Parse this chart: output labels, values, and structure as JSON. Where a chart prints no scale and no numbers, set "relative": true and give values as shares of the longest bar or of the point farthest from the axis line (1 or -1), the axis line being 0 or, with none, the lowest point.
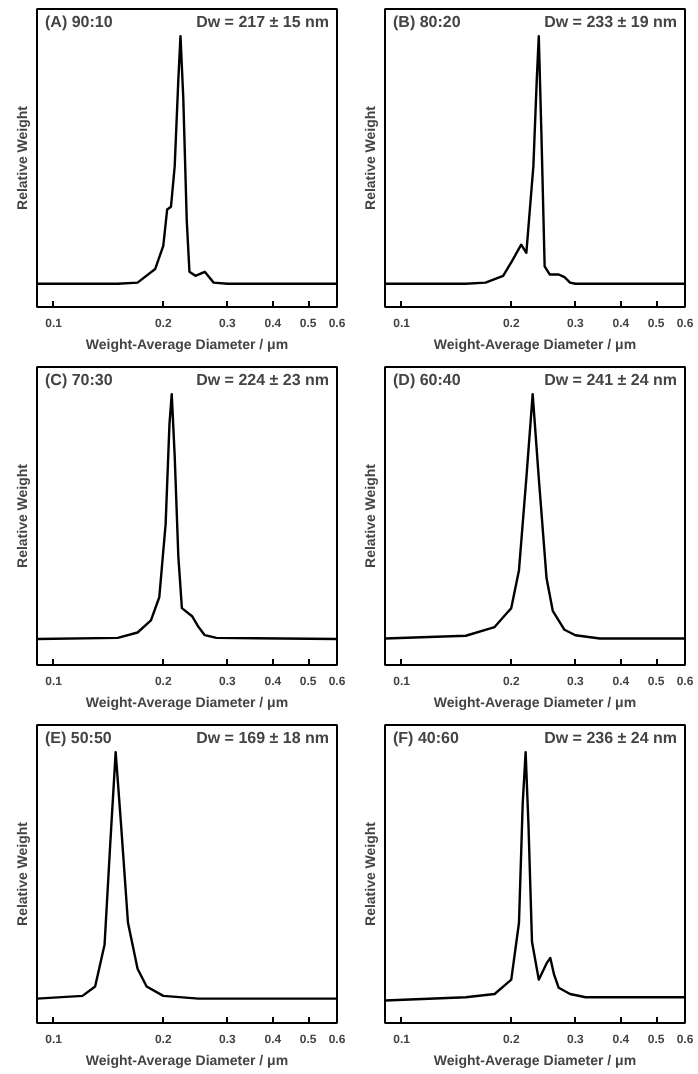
{
  "chart_data": [
    {
      "type": "line",
      "title": "(A) 90:10",
      "annotations": [
        "Dw = 217 ± 15 nm"
      ],
      "xlabel": "Weight-Average Diameter / μm",
      "ylabel": "Relative Weight",
      "log": "x",
      "relative": true,
      "tick_labels": "x",
      "xlim": [
        0.09,
        0.6
      ],
      "xticks": [
        0.1,
        0.2,
        0.3,
        0.4,
        0.5,
        0.6
      ],
      "color": "#000000",
      "x": [
        0.09,
        0.15,
        0.17,
        0.19,
        0.2,
        0.205,
        0.21,
        0.215,
        0.22,
        0.223,
        0.227,
        0.232,
        0.236,
        0.245,
        0.26,
        0.275,
        0.3,
        0.6
      ],
      "values": [
        0.086,
        0.086,
        0.09,
        0.14,
        0.226,
        0.36,
        0.37,
        0.52,
        0.84,
        1.0,
        0.77,
        0.32,
        0.13,
        0.115,
        0.13,
        0.09,
        0.086,
        0.086
      ]
    },
    {
      "type": "line",
      "title": "(B) 80:20",
      "annotations": [
        "Dw = 233 ± 19 nm"
      ],
      "xlabel": "Weight-Average Diameter / μm",
      "ylabel": "Relative Weight",
      "log": "x",
      "relative": true,
      "tick_labels": "x",
      "xlim": [
        0.09,
        0.6
      ],
      "xticks": [
        0.1,
        0.2,
        0.3,
        0.4,
        0.5,
        0.6
      ],
      "color": "#000000",
      "x": [
        0.09,
        0.15,
        0.17,
        0.19,
        0.2,
        0.213,
        0.22,
        0.23,
        0.235,
        0.238,
        0.242,
        0.247,
        0.255,
        0.27,
        0.28,
        0.29,
        0.3,
        0.6
      ],
      "values": [
        0.086,
        0.086,
        0.09,
        0.115,
        0.165,
        0.23,
        0.2,
        0.52,
        0.84,
        1.0,
        0.64,
        0.15,
        0.12,
        0.12,
        0.11,
        0.09,
        0.086,
        0.086
      ]
    },
    {
      "type": "line",
      "title": "(C) 70:30",
      "annotations": [
        "Dw = 224 ± 23 nm"
      ],
      "xlabel": "Weight-Average Diameter / μm",
      "ylabel": "Relative Weight",
      "log": "x",
      "relative": true,
      "tick_labels": "x",
      "xlim": [
        0.09,
        0.6
      ],
      "xticks": [
        0.1,
        0.2,
        0.3,
        0.4,
        0.5,
        0.6
      ],
      "color": "#000000",
      "x": [
        0.09,
        0.15,
        0.17,
        0.185,
        0.195,
        0.203,
        0.208,
        0.211,
        0.215,
        0.22,
        0.225,
        0.24,
        0.25,
        0.26,
        0.28,
        0.6
      ],
      "values": [
        0.096,
        0.1,
        0.12,
        0.165,
        0.25,
        0.52,
        0.89,
        1.0,
        0.77,
        0.4,
        0.21,
        0.18,
        0.14,
        0.11,
        0.1,
        0.096
      ]
    },
    {
      "type": "line",
      "title": "(D)  60:40",
      "annotations": [
        "Dw = 241 ± 24 nm"
      ],
      "xlabel": "Weight-Average Diameter / μm",
      "ylabel": "Relative Weight",
      "log": "x",
      "relative": true,
      "tick_labels": "x",
      "xlim": [
        0.09,
        0.6
      ],
      "xticks": [
        0.1,
        0.2,
        0.3,
        0.4,
        0.5,
        0.6
      ],
      "color": "#000000",
      "x": [
        0.09,
        0.15,
        0.18,
        0.2,
        0.21,
        0.22,
        0.229,
        0.238,
        0.25,
        0.26,
        0.28,
        0.3,
        0.35,
        0.6
      ],
      "values": [
        0.098,
        0.108,
        0.14,
        0.21,
        0.35,
        0.69,
        1.0,
        0.69,
        0.32,
        0.2,
        0.13,
        0.11,
        0.098,
        0.098
      ]
    },
    {
      "type": "line",
      "title": "(E) 50:50",
      "annotations": [
        "Dw = 169 ± 18 nm"
      ],
      "xlabel": "Weight-Average Diameter / μm",
      "ylabel": "Relative Weight",
      "log": "x",
      "relative": true,
      "tick_labels": "x",
      "xlim": [
        0.09,
        0.6
      ],
      "xticks": [
        0.1,
        0.2,
        0.3,
        0.4,
        0.5,
        0.6
      ],
      "color": "#000000",
      "x": [
        0.09,
        0.12,
        0.13,
        0.138,
        0.143,
        0.148,
        0.153,
        0.16,
        0.17,
        0.18,
        0.2,
        0.25,
        0.6
      ],
      "values": [
        0.09,
        0.1,
        0.135,
        0.29,
        0.66,
        1.0,
        0.74,
        0.37,
        0.2,
        0.135,
        0.1,
        0.09,
        0.09
      ]
    },
    {
      "type": "line",
      "title": "(F) 40:60",
      "annotations": [
        "Dw = 236 ± 24 nm"
      ],
      "xlabel": "Weight-Average Diameter / μm",
      "ylabel": "Relative Weight",
      "log": "x",
      "relative": true,
      "tick_labels": "x",
      "xlim": [
        0.09,
        0.6
      ],
      "xticks": [
        0.1,
        0.2,
        0.3,
        0.4,
        0.5,
        0.6
      ],
      "color": "#000000",
      "x": [
        0.09,
        0.15,
        0.18,
        0.2,
        0.21,
        0.215,
        0.219,
        0.223,
        0.228,
        0.238,
        0.25,
        0.256,
        0.262,
        0.27,
        0.29,
        0.32,
        0.6
      ],
      "values": [
        0.083,
        0.095,
        0.107,
        0.16,
        0.37,
        0.81,
        1.0,
        0.73,
        0.3,
        0.16,
        0.22,
        0.24,
        0.18,
        0.13,
        0.107,
        0.095,
        0.095
      ]
    }
  ]
}
